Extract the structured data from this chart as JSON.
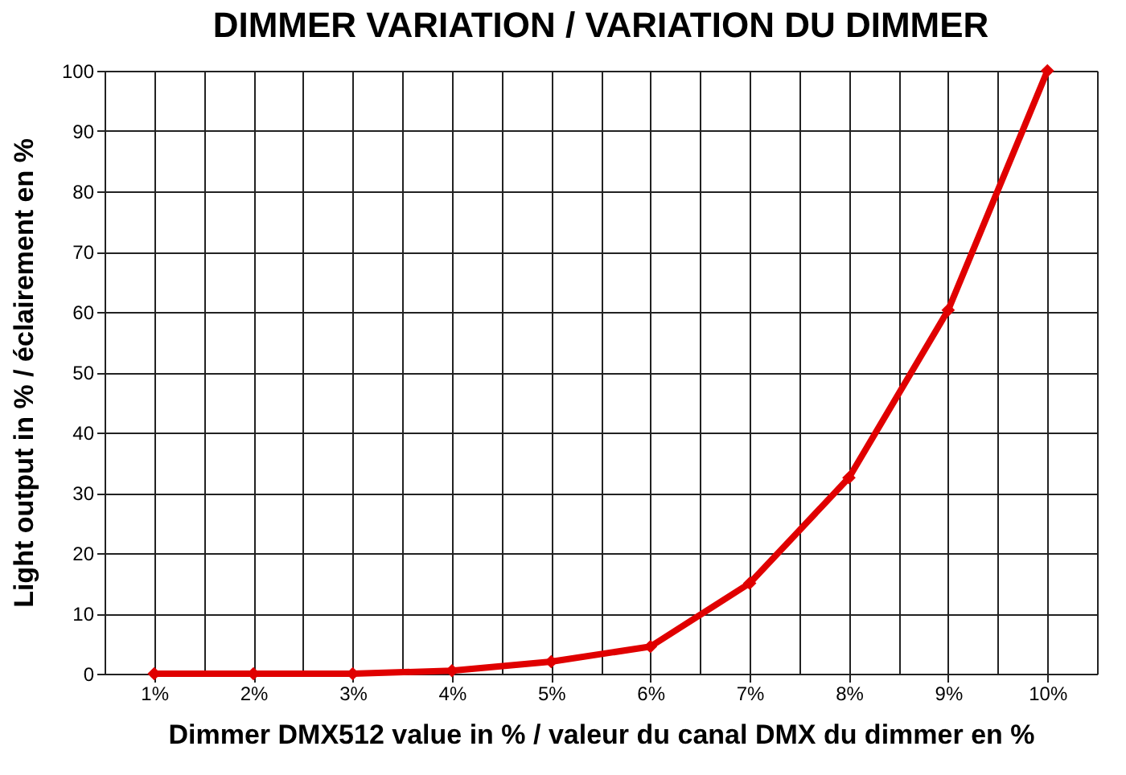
{
  "chart_data": {
    "type": "line",
    "title": "DIMMER VARIATION / VARIATION DU DIMMER",
    "xlabel": "Dimmer DMX512 value in % / valeur du canal DMX du dimmer en %",
    "ylabel": "Light output in % / éclairement en %",
    "categories": [
      "1%",
      "2%",
      "3%",
      "4%",
      "5%",
      "6%",
      "7%",
      "8%",
      "9%",
      "10%"
    ],
    "series": [
      {
        "color": "#e00000",
        "values": [
          0,
          0,
          0,
          0.5,
          2,
          4.5,
          15,
          32.5,
          60.3,
          100
        ]
      }
    ],
    "ylim": [
      0,
      100
    ],
    "yticks": [
      0,
      10,
      20,
      30,
      40,
      50,
      60,
      70,
      80,
      90,
      100
    ],
    "grid": true,
    "marker": "diamond",
    "line_style": "solid"
  }
}
